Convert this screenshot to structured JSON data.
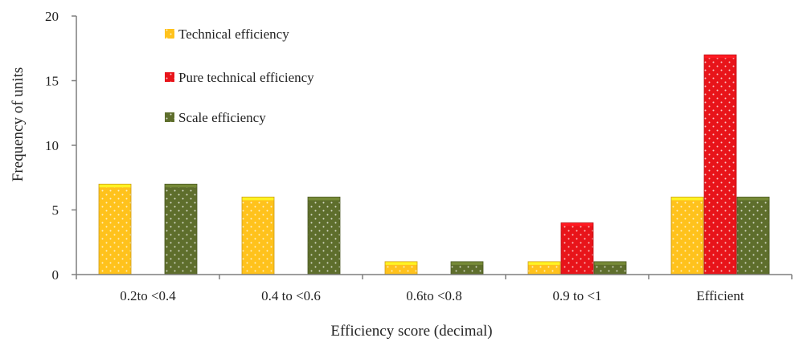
{
  "chart_data": {
    "type": "bar",
    "xlabel": "Efficiency score (decimal)",
    "ylabel": "Frequency of units",
    "categories": [
      "0.2to <0.4",
      "0.4 to <0.6",
      "0.6to <0.8",
      "0.9 to <1",
      "Efficient"
    ],
    "series": [
      {
        "name": "Technical efficiency",
        "color": "#FFC21C",
        "values": [
          7,
          6,
          1,
          1,
          6
        ]
      },
      {
        "name": "Pure technical efficiency",
        "color": "#E8141A",
        "values": [
          0,
          0,
          0,
          4,
          17
        ]
      },
      {
        "name": "Scale efficiency",
        "color": "#5E6E2C",
        "values": [
          7,
          6,
          1,
          1,
          6
        ]
      }
    ],
    "ylim": [
      0,
      20
    ],
    "yticks": [
      "0",
      "5",
      "10",
      "15",
      "20"
    ],
    "ytick_values": [
      0,
      5,
      10,
      15,
      20
    ],
    "grid": false,
    "legend_position": "top-left"
  }
}
